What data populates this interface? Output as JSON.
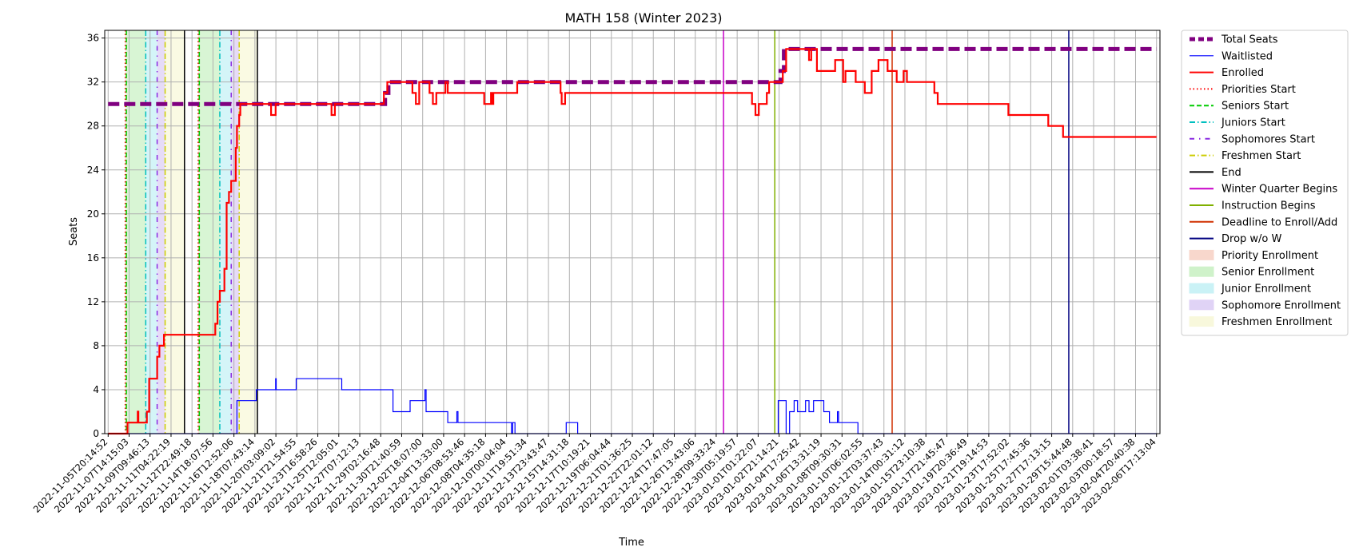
{
  "chart_data": {
    "type": "line",
    "title": "MATH 158 (Winter 2023)",
    "xlabel": "Time",
    "ylabel": "Seats",
    "ylim": [
      0,
      36.7
    ],
    "xlim": [
      -0.3,
      92.3
    ],
    "grid": true,
    "legend_placement": "outside-right-top",
    "x_tick_labels": [
      "2022-11-05T20:14:52",
      "2022-11-07T14:15:03",
      "2022-11-09T09:46:13",
      "2022-11-11T04:22:19",
      "2022-11-12T22:49:18",
      "2022-11-14T18:07:56",
      "2022-11-16T12:52:06",
      "2022-11-18T07:43:14",
      "2022-11-20T03:09:02",
      "2022-11-21T21:54:55",
      "2022-11-23T16:58:26",
      "2022-11-25T12:05:01",
      "2022-11-27T07:12:13",
      "2022-11-29T02:16:48",
      "2022-11-30T21:40:59",
      "2022-12-02T18:07:00",
      "2022-12-04T13:33:00",
      "2022-12-06T08:53:46",
      "2022-12-08T04:35:18",
      "2022-12-10T00:04:04",
      "2022-12-11T19:51:34",
      "2022-12-13T23:43:47",
      "2022-12-15T14:31:18",
      "2022-12-17T10:19:21",
      "2022-12-19T06:04:44",
      "2022-12-21T01:36:25",
      "2022-12-22T22:01:12",
      "2022-12-24T17:47:05",
      "2022-12-26T13:43:06",
      "2022-12-28T09:33:24",
      "2022-12-30T05:19:57",
      "2023-01-01T01:22:07",
      "2023-01-02T21:14:21",
      "2023-01-04T17:25:42",
      "2023-01-06T13:31:19",
      "2023-01-08T09:30:31",
      "2023-01-10T06:02:55",
      "2023-01-12T03:37:43",
      "2023-01-14T00:31:12",
      "2023-01-15T23:10:38",
      "2023-01-17T21:45:47",
      "2023-01-19T20:36:49",
      "2023-01-21T19:14:53",
      "2023-01-23T17:52:02",
      "2023-01-25T17:45:36",
      "2023-01-27T17:13:15",
      "2023-01-29T15:44:48",
      "2023-02-01T03:38:41",
      "2023-02-03T00:18:57",
      "2023-02-04T20:40:38",
      "2023-02-06T17:13:04"
    ],
    "y_ticks": [
      0,
      4,
      8,
      12,
      16,
      20,
      24,
      28,
      32,
      36
    ],
    "legend": [
      "Total Seats",
      "Waitlisted",
      "Enrolled",
      "Priorities Start",
      "Seniors Start",
      "Juniors Start",
      "Sophomores Start",
      "Freshmen Start",
      "End",
      "Winter Quarter Begins",
      "Instruction Begins",
      "Deadline to Enroll/Add",
      "Drop w/o W",
      "Priority Enrollment",
      "Senior Enrollment",
      "Junior Enrollment",
      "Sophomore Enrollment",
      "Freshmen Enrollment"
    ],
    "series": [
      {
        "name": "Total Seats",
        "color": "#800080",
        "style": "dashed-thick",
        "points": [
          [
            0,
            30
          ],
          [
            24.3,
            30
          ],
          [
            24.3,
            31
          ],
          [
            24.6,
            31
          ],
          [
            24.6,
            32
          ],
          [
            59,
            32
          ],
          [
            59,
            33
          ],
          [
            59.3,
            33
          ],
          [
            59.3,
            35
          ],
          [
            92,
            35
          ]
        ]
      },
      {
        "name": "Waitlisted",
        "color": "#0000ff",
        "style": "solid-thin",
        "points": [
          [
            0,
            0
          ],
          [
            11.3,
            0
          ],
          [
            11.3,
            3
          ],
          [
            13,
            3
          ],
          [
            13,
            4
          ],
          [
            14.7,
            4
          ],
          [
            14.7,
            5
          ],
          [
            14.75,
            5
          ],
          [
            14.75,
            4
          ],
          [
            16.5,
            4
          ],
          [
            16.5,
            5
          ],
          [
            20.5,
            5
          ],
          [
            20.5,
            4
          ],
          [
            25,
            4
          ],
          [
            25,
            2
          ],
          [
            26.5,
            2
          ],
          [
            26.5,
            3
          ],
          [
            27.8,
            3
          ],
          [
            27.8,
            4
          ],
          [
            27.9,
            4
          ],
          [
            27.9,
            2
          ],
          [
            29.8,
            2
          ],
          [
            29.8,
            1
          ],
          [
            30.6,
            1
          ],
          [
            30.6,
            2
          ],
          [
            30.7,
            2
          ],
          [
            30.7,
            1
          ],
          [
            35.4,
            1
          ],
          [
            35.4,
            0
          ],
          [
            35.5,
            0
          ],
          [
            35.5,
            1
          ],
          [
            35.7,
            1
          ],
          [
            35.7,
            0
          ],
          [
            40.2,
            0
          ],
          [
            40.2,
            1
          ],
          [
            41.2,
            1
          ],
          [
            41.2,
            0
          ],
          [
            58.8,
            0
          ],
          [
            58.8,
            3
          ],
          [
            59.5,
            3
          ],
          [
            59.5,
            0
          ],
          [
            59.8,
            0
          ],
          [
            59.8,
            2
          ],
          [
            60.2,
            2
          ],
          [
            60.2,
            3
          ],
          [
            60.5,
            3
          ],
          [
            60.5,
            2
          ],
          [
            61.2,
            2
          ],
          [
            61.2,
            3
          ],
          [
            61.5,
            3
          ],
          [
            61.5,
            2
          ],
          [
            61.9,
            2
          ],
          [
            61.9,
            3
          ],
          [
            62.8,
            3
          ],
          [
            62.8,
            2
          ],
          [
            63.3,
            2
          ],
          [
            63.3,
            1
          ],
          [
            64,
            1
          ],
          [
            64,
            2
          ],
          [
            64.1,
            2
          ],
          [
            64.1,
            1
          ],
          [
            65.8,
            1
          ],
          [
            65.8,
            0
          ],
          [
            92,
            0
          ]
        ]
      },
      {
        "name": "Enrolled",
        "color": "#ff0000",
        "style": "solid",
        "points": [
          [
            0,
            0
          ],
          [
            1.7,
            0
          ],
          [
            1.7,
            1
          ],
          [
            2.6,
            1
          ],
          [
            2.6,
            2
          ],
          [
            2.65,
            2
          ],
          [
            2.65,
            1
          ],
          [
            3.4,
            1
          ],
          [
            3.4,
            2
          ],
          [
            3.6,
            2
          ],
          [
            3.6,
            5
          ],
          [
            4.3,
            5
          ],
          [
            4.3,
            7
          ],
          [
            4.5,
            7
          ],
          [
            4.5,
            8
          ],
          [
            4.9,
            8
          ],
          [
            4.9,
            9
          ],
          [
            9.4,
            9
          ],
          [
            9.4,
            10
          ],
          [
            9.6,
            10
          ],
          [
            9.6,
            12
          ],
          [
            9.8,
            12
          ],
          [
            9.8,
            13
          ],
          [
            10.2,
            13
          ],
          [
            10.2,
            15
          ],
          [
            10.4,
            15
          ],
          [
            10.4,
            21
          ],
          [
            10.6,
            21
          ],
          [
            10.6,
            22
          ],
          [
            10.8,
            22
          ],
          [
            10.8,
            23
          ],
          [
            11.2,
            23
          ],
          [
            11.2,
            26
          ],
          [
            11.3,
            26
          ],
          [
            11.3,
            28
          ],
          [
            11.5,
            28
          ],
          [
            11.5,
            29
          ],
          [
            11.6,
            29
          ],
          [
            11.6,
            30
          ],
          [
            14.3,
            30
          ],
          [
            14.3,
            29
          ],
          [
            14.7,
            29
          ],
          [
            14.7,
            30
          ],
          [
            19.6,
            30
          ],
          [
            19.6,
            29
          ],
          [
            19.9,
            29
          ],
          [
            19.9,
            30
          ],
          [
            24.2,
            30
          ],
          [
            24.2,
            31
          ],
          [
            24.5,
            31
          ],
          [
            24.5,
            32
          ],
          [
            26.7,
            32
          ],
          [
            26.7,
            31
          ],
          [
            27,
            31
          ],
          [
            27,
            30
          ],
          [
            27.3,
            30
          ],
          [
            27.3,
            32
          ],
          [
            28.2,
            32
          ],
          [
            28.2,
            31
          ],
          [
            28.5,
            31
          ],
          [
            28.5,
            30
          ],
          [
            28.8,
            30
          ],
          [
            28.8,
            31
          ],
          [
            29.6,
            31
          ],
          [
            29.6,
            32
          ],
          [
            29.8,
            32
          ],
          [
            29.8,
            31
          ],
          [
            33,
            31
          ],
          [
            33,
            30
          ],
          [
            33.6,
            30
          ],
          [
            33.6,
            31
          ],
          [
            33.7,
            31
          ],
          [
            33.7,
            30
          ],
          [
            33.8,
            30
          ],
          [
            33.8,
            31
          ],
          [
            35.9,
            31
          ],
          [
            35.9,
            32
          ],
          [
            39.7,
            32
          ],
          [
            39.7,
            31
          ],
          [
            39.8,
            31
          ],
          [
            39.8,
            30
          ],
          [
            40.1,
            30
          ],
          [
            40.1,
            31
          ],
          [
            56.5,
            31
          ],
          [
            56.5,
            30
          ],
          [
            56.8,
            30
          ],
          [
            56.8,
            29
          ],
          [
            57.1,
            29
          ],
          [
            57.1,
            30
          ],
          [
            57.8,
            30
          ],
          [
            57.8,
            31
          ],
          [
            58,
            31
          ],
          [
            58,
            32
          ],
          [
            59.2,
            32
          ],
          [
            59.2,
            33
          ],
          [
            59.5,
            33
          ],
          [
            59.5,
            35
          ],
          [
            61.5,
            35
          ],
          [
            61.5,
            34
          ],
          [
            61.7,
            34
          ],
          [
            61.7,
            35
          ],
          [
            62.2,
            35
          ],
          [
            62.2,
            33
          ],
          [
            63.8,
            33
          ],
          [
            63.8,
            34
          ],
          [
            64.5,
            34
          ],
          [
            64.5,
            32
          ],
          [
            64.7,
            32
          ],
          [
            64.7,
            33
          ],
          [
            65.6,
            33
          ],
          [
            65.6,
            32
          ],
          [
            66.4,
            32
          ],
          [
            66.4,
            31
          ],
          [
            67,
            31
          ],
          [
            67,
            33
          ],
          [
            67.6,
            33
          ],
          [
            67.6,
            34
          ],
          [
            68.4,
            34
          ],
          [
            68.4,
            33
          ],
          [
            69.2,
            33
          ],
          [
            69.2,
            32
          ],
          [
            69.8,
            32
          ],
          [
            69.8,
            33
          ],
          [
            70.1,
            33
          ],
          [
            70.1,
            32
          ],
          [
            72.5,
            32
          ],
          [
            72.5,
            31
          ],
          [
            72.8,
            31
          ],
          [
            72.8,
            30
          ],
          [
            79,
            30
          ],
          [
            79,
            29
          ],
          [
            82.5,
            29
          ],
          [
            82.5,
            28
          ],
          [
            83.8,
            28
          ],
          [
            83.8,
            27
          ],
          [
            92,
            27
          ]
        ]
      }
    ],
    "event_lines": [
      {
        "name": "Priorities Start",
        "color": "#ff0000",
        "style": "dotted",
        "x": [
          1.5,
          7.9
        ]
      },
      {
        "name": "Seniors Start",
        "color": "#00cc00",
        "style": "dashed",
        "x": [
          1.6,
          8.0
        ]
      },
      {
        "name": "Juniors Start",
        "color": "#00bfbf",
        "style": "dashdot",
        "x": [
          3.3,
          9.8
        ]
      },
      {
        "name": "Sophomores Start",
        "color": "#8a2be2",
        "style": "dashdotted",
        "x": [
          4.3,
          10.8
        ]
      },
      {
        "name": "Freshmen Start",
        "color": "#cccc00",
        "style": "dashdot",
        "x": [
          5.0,
          11.5
        ]
      },
      {
        "name": "End",
        "color": "#000000",
        "style": "solid",
        "x": [
          6.7,
          13.1
        ]
      },
      {
        "name": "Winter Quarter Begins",
        "color": "#c800c8",
        "style": "solid",
        "x": [
          54.0
        ]
      },
      {
        "name": "Instruction Begins",
        "color": "#80b000",
        "style": "solid",
        "x": [
          58.5
        ]
      },
      {
        "name": "Deadline to Enroll/Add",
        "color": "#d03000",
        "style": "solid",
        "x": [
          68.8
        ]
      },
      {
        "name": "Drop w/o W",
        "color": "#000080",
        "style": "solid",
        "x": [
          84.3
        ]
      }
    ],
    "enrollment_bands": [
      {
        "name": "Priority Enrollment",
        "color": "#f4b8a4",
        "ranges": [
          [
            1.5,
            1.6
          ],
          [
            7.9,
            8.0
          ]
        ]
      },
      {
        "name": "Senior Enrollment",
        "color": "#a8e8a0",
        "ranges": [
          [
            1.6,
            3.3
          ],
          [
            8.0,
            9.8
          ]
        ]
      },
      {
        "name": "Junior Enrollment",
        "color": "#a0e8f0",
        "ranges": [
          [
            3.3,
            4.3
          ],
          [
            9.8,
            10.8
          ]
        ]
      },
      {
        "name": "Sophomore Enrollment",
        "color": "#c8b0f0",
        "ranges": [
          [
            4.3,
            5.0
          ],
          [
            10.8,
            11.5
          ]
        ]
      },
      {
        "name": "Freshmen Enrollment",
        "color": "#f4f4c0",
        "ranges": [
          [
            5.0,
            6.7
          ],
          [
            11.5,
            13.1
          ]
        ]
      }
    ]
  }
}
